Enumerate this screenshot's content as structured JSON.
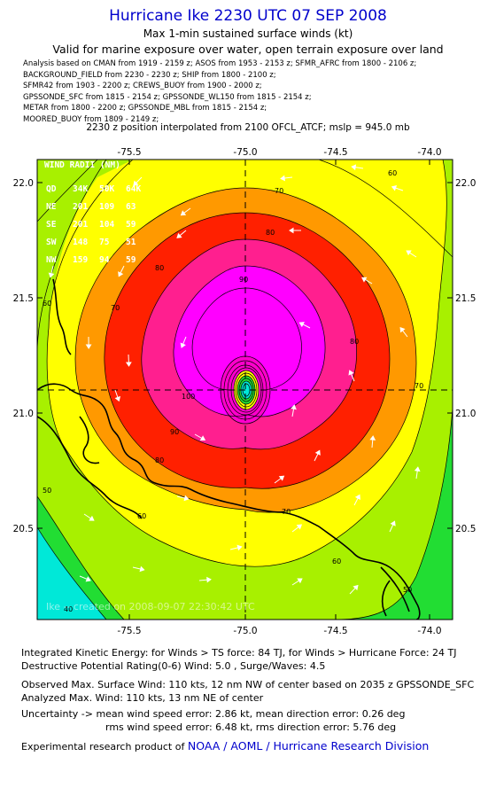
{
  "header": {
    "title": "Hurricane Ike 2230 UTC 07 SEP 2008",
    "subtitle": "Max 1-min sustained surface winds (kt)",
    "validity": "Valid for marine exposure over water, open terrain exposure over land",
    "analysis_lines": [
      "Analysis based on  CMAN from 1919 - 2159 z;  ASOS from 1953 - 2153 z;  SFMR_AFRC from 1800 - 2106 z;",
      "BACKGROUND_FIELD from 2230 - 2230 z;  SHIP from 1800 - 2100 z;",
      "SFMR42 from 1903 - 2200 z;  CREWS_BUOY from 1900 - 2000 z;",
      "GPSSONDE_SFC from 1815 - 2154 z;  GPSSONDE_WL150 from 1815 - 2154 z;",
      "METAR from 1800 - 2200 z;  GPSSONDE_MBL from 1815 - 2154 z;",
      "MOORED_BUOY from 1809 - 2149 z;"
    ],
    "position_line": "2230 z position interpolated from 2100 OFCL_ATCF; mslp = 945.0 mb"
  },
  "map": {
    "x_ticks": [
      "-75.5",
      "-75.0",
      "-74.5",
      "-74.0"
    ],
    "y_ticks": [
      "22.0",
      "21.5",
      "21.0",
      "20.5"
    ],
    "extent": {
      "lon": [
        -75.88,
        -74.03
      ],
      "lat": [
        20.13,
        21.94
      ]
    },
    "center": {
      "lon": -74.98,
      "lat": 21.1
    },
    "wind_radii": {
      "title": "WIND RADII (NM)",
      "header": [
        "QD",
        "34K",
        "50K",
        "64K"
      ],
      "rows": [
        [
          "NE",
          "201",
          "109",
          "63"
        ],
        [
          "SE",
          "201",
          "104",
          "59"
        ],
        [
          "SW",
          "148",
          "75",
          "51"
        ],
        [
          "NW",
          "159",
          "94",
          "59"
        ]
      ]
    },
    "watermark": "Ike -- created on 2008-09-07 22:30:42 UTC",
    "contour_labels": [
      "70",
      "60",
      "60",
      "70",
      "80",
      "90",
      "100",
      "90",
      "80",
      "80",
      "80",
      "70",
      "70",
      "60",
      "60",
      "50",
      "50",
      "40"
    ],
    "colors": {
      "cyan": "#00e8d8",
      "green": "#22dd33",
      "lime": "#a8f000",
      "yellow": "#ffff00",
      "orange": "#ff9900",
      "red": "#ff2000",
      "pink": "#ff1f8f",
      "magenta": "#ff00ff",
      "frame": "#000000",
      "arrow": "#ffffff"
    }
  },
  "footer": {
    "ike_line": "Integrated Kinetic Energy:  for Winds > TS force: 84 TJ,  for Winds > Hurricane Force: 24 TJ",
    "potential_line": "Destructive Potential Rating(0-6)   Wind: 5.0 , Surge/Waves: 4.5",
    "observed_line": "Observed Max. Surface Wind: 110 kts, 12 nm NW of center based on 2035 z GPSSONDE_SFC",
    "analyzed_line": "Analyzed Max. Wind: 110 kts, 13 nm NE of center",
    "uncertainty_line1": "Uncertainty -> mean wind speed error: 2.86 kt,   mean direction error: 0.26 deg",
    "uncertainty_line2": "rms wind speed error: 6.48 kt,   rms direction error: 5.76 deg",
    "product_prefix": "Experimental research product of",
    "product_link": "NOAA / AOML / Hurricane Research Division"
  }
}
